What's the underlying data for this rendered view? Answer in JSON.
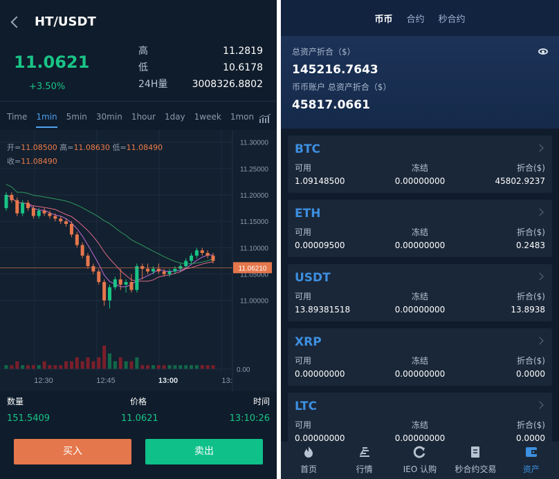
{
  "left": {
    "pair": "HT/USDT",
    "price": "11.0621",
    "change": "+3.50%",
    "stats": [
      {
        "label": "高",
        "value": "11.2819"
      },
      {
        "label": "低",
        "value": "10.6178"
      },
      {
        "label": "24H量",
        "value": "3008326.8802"
      }
    ],
    "timeframes": [
      "Time",
      "1min",
      "5min",
      "30min",
      "1hour",
      "1day",
      "1week",
      "1mon"
    ],
    "active_timeframe": "1min",
    "ohlc": {
      "open_label": "开=",
      "open": "11.08500",
      "high_label": "高=",
      "high": "11.08630",
      "low_label": "低=",
      "low": "11.08490",
      "close_label": "收=",
      "close": "11.08490"
    },
    "trades_header": {
      "qty": "数量",
      "price": "价格",
      "time": "时间"
    },
    "trade_row": {
      "qty": "151.5409",
      "price": "11.0621",
      "time": "13:10:26"
    },
    "buy_label": "买入",
    "sell_label": "卖出"
  },
  "chart_data": {
    "type": "candlestick",
    "y_ticks": [
      "11.30000",
      "11.25000",
      "11.20000",
      "11.15000",
      "11.10000",
      "11.05000",
      "11.00000"
    ],
    "volume_tick": "0.00",
    "x_ticks": [
      "12:30",
      "12:45",
      "13:00",
      "13:"
    ],
    "last_price": "11.06210",
    "ylim": [
      10.98,
      11.31
    ],
    "up_color": "#19c486",
    "down_color": "#e5774c",
    "candles": [
      [
        11.175,
        11.205,
        11.17,
        11.2
      ],
      [
        11.2,
        11.205,
        11.185,
        11.19
      ],
      [
        11.19,
        11.195,
        11.16,
        11.165
      ],
      [
        11.165,
        11.19,
        11.16,
        11.185
      ],
      [
        11.185,
        11.19,
        11.17,
        11.175
      ],
      [
        11.175,
        11.18,
        11.155,
        11.16
      ],
      [
        11.16,
        11.175,
        11.155,
        11.17
      ],
      [
        11.17,
        11.175,
        11.16,
        11.165
      ],
      [
        11.165,
        11.17,
        11.155,
        11.16
      ],
      [
        11.16,
        11.165,
        11.15,
        11.155
      ],
      [
        11.155,
        11.16,
        11.145,
        11.15
      ],
      [
        11.15,
        11.155,
        11.14,
        11.145
      ],
      [
        11.145,
        11.15,
        11.12,
        11.125
      ],
      [
        11.125,
        11.13,
        11.1,
        11.105
      ],
      [
        11.105,
        11.11,
        11.08,
        11.085
      ],
      [
        11.085,
        11.09,
        11.06,
        11.065
      ],
      [
        11.065,
        11.07,
        11.05,
        11.055
      ],
      [
        11.055,
        11.06,
        11.03,
        11.035
      ],
      [
        11.035,
        11.04,
        10.99,
        11.0
      ],
      [
        11.0,
        11.03,
        10.985,
        11.025
      ],
      [
        11.025,
        11.045,
        11.02,
        11.04
      ],
      [
        11.04,
        11.06,
        11.02,
        11.03
      ],
      [
        11.03,
        11.04,
        11.015,
        11.035
      ],
      [
        11.035,
        11.05,
        11.015,
        11.02
      ],
      [
        11.02,
        11.07,
        11.015,
        11.065
      ],
      [
        11.065,
        11.07,
        11.04,
        11.06
      ],
      [
        11.06,
        11.07,
        11.05,
        11.055
      ],
      [
        11.055,
        11.065,
        11.05,
        11.06
      ],
      [
        11.06,
        11.07,
        11.05,
        11.055
      ],
      [
        11.055,
        11.06,
        11.045,
        11.05
      ],
      [
        11.05,
        11.06,
        11.045,
        11.055
      ],
      [
        11.055,
        11.065,
        11.05,
        11.06
      ],
      [
        11.06,
        11.07,
        11.055,
        11.065
      ],
      [
        11.065,
        11.08,
        11.06,
        11.075
      ],
      [
        11.075,
        11.09,
        11.07,
        11.085
      ],
      [
        11.085,
        11.1,
        11.08,
        11.095
      ],
      [
        11.095,
        11.1,
        11.085,
        11.09
      ],
      [
        11.09,
        11.095,
        11.08,
        11.085
      ],
      [
        11.085,
        11.09,
        11.07,
        11.075
      ]
    ],
    "volumes": [
      1,
      1,
      2,
      1,
      1,
      1,
      1,
      2,
      1,
      1,
      1,
      2,
      2,
      3,
      2,
      3,
      2,
      3,
      6,
      4,
      2,
      3,
      2,
      2,
      3,
      1,
      1,
      1,
      1,
      1,
      1,
      1,
      1,
      1,
      1,
      1,
      1,
      1,
      1
    ]
  },
  "right": {
    "tabs": [
      "币币",
      "合约",
      "秒合约"
    ],
    "active_tab": "币币",
    "total_label": "总资产折合（$）",
    "total_value": "145216.7643",
    "spot_label": "币币账户 总资产折合（$）",
    "spot_value": "45817.0661",
    "col_available": "可用",
    "col_frozen": "冻结",
    "col_value": "折合($)",
    "coins": [
      {
        "name": "BTC",
        "available": "1.09148500",
        "frozen": "0.00000000",
        "value": "45802.9237"
      },
      {
        "name": "ETH",
        "available": "0.00009500",
        "frozen": "0.00000000",
        "value": "0.2483"
      },
      {
        "name": "USDT",
        "available": "13.89381518",
        "frozen": "0.00000000",
        "value": "13.8938"
      },
      {
        "name": "XRP",
        "available": "0.00000000",
        "frozen": "0.00000000",
        "value": "0.0000"
      },
      {
        "name": "LTC",
        "available": "0.00000000",
        "frozen": "0.00000000",
        "value": "0.0000"
      }
    ],
    "nav": [
      {
        "label": "首页",
        "icon": "flame-icon"
      },
      {
        "label": "行情",
        "icon": "chart-lines-icon"
      },
      {
        "label": "IEO 认购",
        "icon": "refresh-icon"
      },
      {
        "label": "秒合约交易",
        "icon": "document-icon"
      },
      {
        "label": "资产",
        "icon": "wallet-icon"
      }
    ],
    "active_nav": "资产",
    "accent": "#3d8fe0"
  }
}
